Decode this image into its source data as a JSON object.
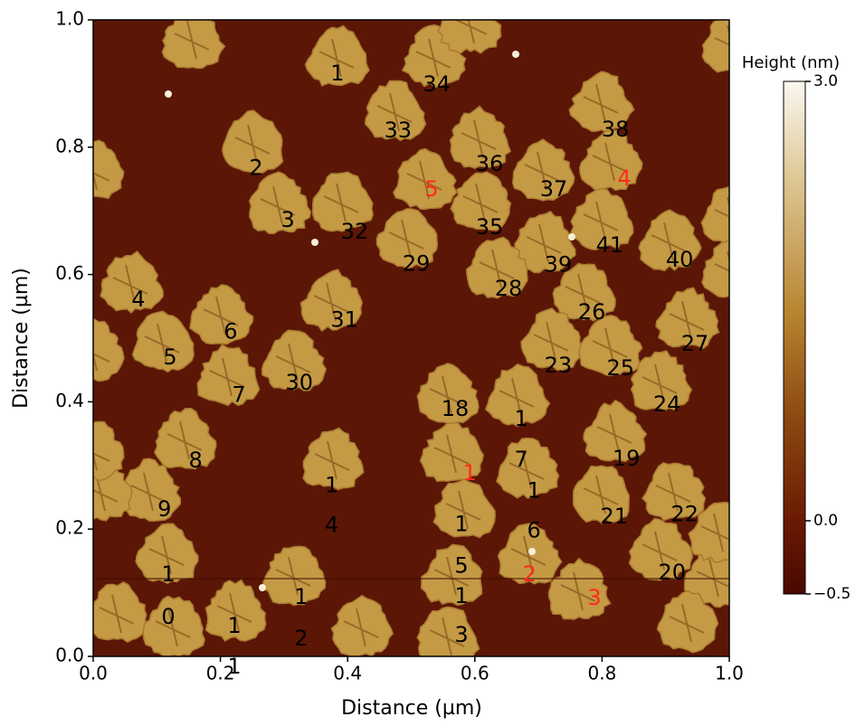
{
  "chart_data": {
    "type": "image",
    "xlabel": "Distance (µm)",
    "ylabel": "Distance (µm)",
    "xlim": [
      0,
      1
    ],
    "ylim": [
      0,
      1
    ],
    "xticks": [
      {
        "value": 0,
        "label": "0.0"
      },
      {
        "value": 0.2,
        "label": "0.2"
      },
      {
        "value": 0.4,
        "label": "0.4"
      },
      {
        "value": 0.6,
        "label": "0.6"
      },
      {
        "value": 0.8,
        "label": "0.8"
      },
      {
        "value": 1,
        "label": "1.0"
      }
    ],
    "yticks": [
      {
        "value": 0,
        "label": "0.0"
      },
      {
        "value": 0.2,
        "label": "0.2"
      },
      {
        "value": 0.4,
        "label": "0.4"
      },
      {
        "value": 0.6,
        "label": "0.6"
      },
      {
        "value": 0.8,
        "label": "0.8"
      },
      {
        "value": 1,
        "label": "1.0"
      }
    ],
    "colorbar": {
      "label": "Height (nm)",
      "lim": [
        -0.5,
        3
      ],
      "ticks": [
        {
          "value": -0.5,
          "label": "−0.5"
        },
        {
          "value": 0,
          "label": "0.0"
        },
        {
          "value": 3,
          "label": "3.0"
        }
      ]
    },
    "annotations": [
      {
        "text": "1",
        "x": 0.384,
        "y": 0.915,
        "color": "black"
      },
      {
        "text": "34",
        "x": 0.54,
        "y": 0.898,
        "color": "black"
      },
      {
        "text": "33",
        "x": 0.479,
        "y": 0.825,
        "color": "black"
      },
      {
        "text": "38",
        "x": 0.821,
        "y": 0.827,
        "color": "black"
      },
      {
        "text": "2",
        "x": 0.256,
        "y": 0.766,
        "color": "black"
      },
      {
        "text": "36",
        "x": 0.623,
        "y": 0.773,
        "color": "black"
      },
      {
        "text": "5",
        "x": 0.532,
        "y": 0.733,
        "color": "red"
      },
      {
        "text": "4",
        "x": 0.835,
        "y": 0.75,
        "color": "red"
      },
      {
        "text": "37",
        "x": 0.724,
        "y": 0.733,
        "color": "black"
      },
      {
        "text": "3",
        "x": 0.306,
        "y": 0.685,
        "color": "black"
      },
      {
        "text": "32",
        "x": 0.411,
        "y": 0.666,
        "color": "black"
      },
      {
        "text": "35",
        "x": 0.623,
        "y": 0.673,
        "color": "black"
      },
      {
        "text": "41",
        "x": 0.812,
        "y": 0.645,
        "color": "black"
      },
      {
        "text": "29",
        "x": 0.508,
        "y": 0.616,
        "color": "black"
      },
      {
        "text": "39",
        "x": 0.731,
        "y": 0.614,
        "color": "black"
      },
      {
        "text": "40",
        "x": 0.922,
        "y": 0.622,
        "color": "black"
      },
      {
        "text": "4",
        "x": 0.071,
        "y": 0.56,
        "color": "black"
      },
      {
        "text": "28",
        "x": 0.653,
        "y": 0.577,
        "color": "black"
      },
      {
        "text": "26",
        "x": 0.784,
        "y": 0.54,
        "color": "black"
      },
      {
        "text": "31",
        "x": 0.395,
        "y": 0.528,
        "color": "black"
      },
      {
        "text": "6",
        "x": 0.216,
        "y": 0.509,
        "color": "black"
      },
      {
        "text": "27",
        "x": 0.946,
        "y": 0.49,
        "color": "black"
      },
      {
        "text": "5",
        "x": 0.121,
        "y": 0.469,
        "color": "black"
      },
      {
        "text": "23",
        "x": 0.731,
        "y": 0.456,
        "color": "black"
      },
      {
        "text": "25",
        "x": 0.829,
        "y": 0.452,
        "color": "black"
      },
      {
        "text": "7",
        "x": 0.229,
        "y": 0.41,
        "color": "black"
      },
      {
        "text": "30",
        "x": 0.324,
        "y": 0.429,
        "color": "black"
      },
      {
        "text": "24",
        "x": 0.902,
        "y": 0.395,
        "color": "black"
      },
      {
        "text": "18",
        "x": 0.569,
        "y": 0.388,
        "color": "black"
      },
      {
        "text": "1",
        "x": 0.673,
        "y": 0.372,
        "color": "black"
      },
      {
        "text": "8",
        "x": 0.161,
        "y": 0.307,
        "color": "black"
      },
      {
        "text": "7",
        "x": 0.673,
        "y": 0.308,
        "color": "black"
      },
      {
        "text": "19",
        "x": 0.838,
        "y": 0.31,
        "color": "black"
      },
      {
        "text": "1",
        "x": 0.592,
        "y": 0.287,
        "color": "red"
      },
      {
        "text": "1",
        "x": 0.375,
        "y": 0.268,
        "color": "black"
      },
      {
        "text": "1",
        "x": 0.693,
        "y": 0.259,
        "color": "black"
      },
      {
        "text": "9",
        "x": 0.112,
        "y": 0.23,
        "color": "black"
      },
      {
        "text": "21",
        "x": 0.819,
        "y": 0.219,
        "color": "black"
      },
      {
        "text": "22",
        "x": 0.93,
        "y": 0.222,
        "color": "black"
      },
      {
        "text": "4",
        "x": 0.375,
        "y": 0.205,
        "color": "black"
      },
      {
        "text": "1",
        "x": 0.579,
        "y": 0.207,
        "color": "black"
      },
      {
        "text": "6",
        "x": 0.693,
        "y": 0.197,
        "color": "black"
      },
      {
        "text": "5",
        "x": 0.579,
        "y": 0.141,
        "color": "black"
      },
      {
        "text": "1",
        "x": 0.118,
        "y": 0.128,
        "color": "black"
      },
      {
        "text": "2",
        "x": 0.686,
        "y": 0.128,
        "color": "red"
      },
      {
        "text": "20",
        "x": 0.91,
        "y": 0.131,
        "color": "black"
      },
      {
        "text": "1",
        "x": 0.327,
        "y": 0.092,
        "color": "black"
      },
      {
        "text": "1",
        "x": 0.579,
        "y": 0.094,
        "color": "black"
      },
      {
        "text": "3",
        "x": 0.788,
        "y": 0.091,
        "color": "red"
      },
      {
        "text": "0",
        "x": 0.118,
        "y": 0.061,
        "color": "black"
      },
      {
        "text": "1",
        "x": 0.222,
        "y": 0.047,
        "color": "black"
      },
      {
        "text": "2",
        "x": 0.327,
        "y": 0.027,
        "color": "black"
      },
      {
        "text": "3",
        "x": 0.579,
        "y": 0.033,
        "color": "black"
      },
      {
        "text": "1",
        "x": 0.222,
        "y": -0.017,
        "color": "black"
      }
    ]
  }
}
